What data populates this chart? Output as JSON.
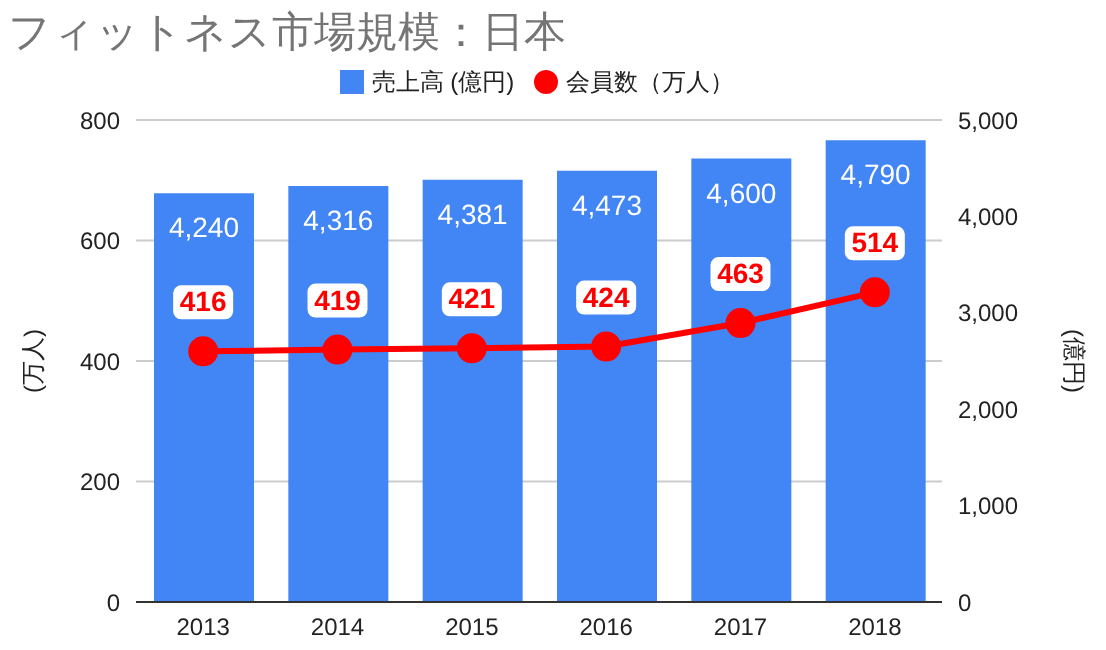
{
  "chart_data": {
    "type": "bar",
    "title": "フィットネス市場規模：日本",
    "categories": [
      "2013",
      "2014",
      "2015",
      "2016",
      "2017",
      "2018"
    ],
    "series": [
      {
        "name": "売上高 (億円)",
        "axis": "y2",
        "color": "#4285f4",
        "values": [
          4240,
          4316,
          4381,
          4473,
          4600,
          4790
        ],
        "value_labels": [
          "4,240",
          "4,316",
          "4,381",
          "4,473",
          "4,600",
          "4,790"
        ]
      },
      {
        "name": "会員数（万人）",
        "type": "line",
        "axis": "y",
        "color": "#ff0000",
        "marker": "circle",
        "values": [
          416,
          419,
          421,
          424,
          463,
          514
        ],
        "value_labels": [
          "416",
          "419",
          "421",
          "424",
          "463",
          "514"
        ]
      }
    ],
    "ylabel": "(万人)",
    "y2label": "(億円)",
    "ylim": [
      0,
      800
    ],
    "yticks": [
      0,
      200,
      400,
      600,
      800
    ],
    "y2lim": [
      0,
      5000
    ],
    "y2ticks": [
      0,
      {
        "value": 1000,
        "label": "1,000"
      },
      {
        "value": 2000,
        "label": "2,000"
      },
      {
        "value": 3000,
        "label": "3,000"
      },
      {
        "value": 4000,
        "label": "4,000"
      },
      {
        "value": 5000,
        "label": "5,000"
      }
    ],
    "grid": "y",
    "legend": "top"
  }
}
